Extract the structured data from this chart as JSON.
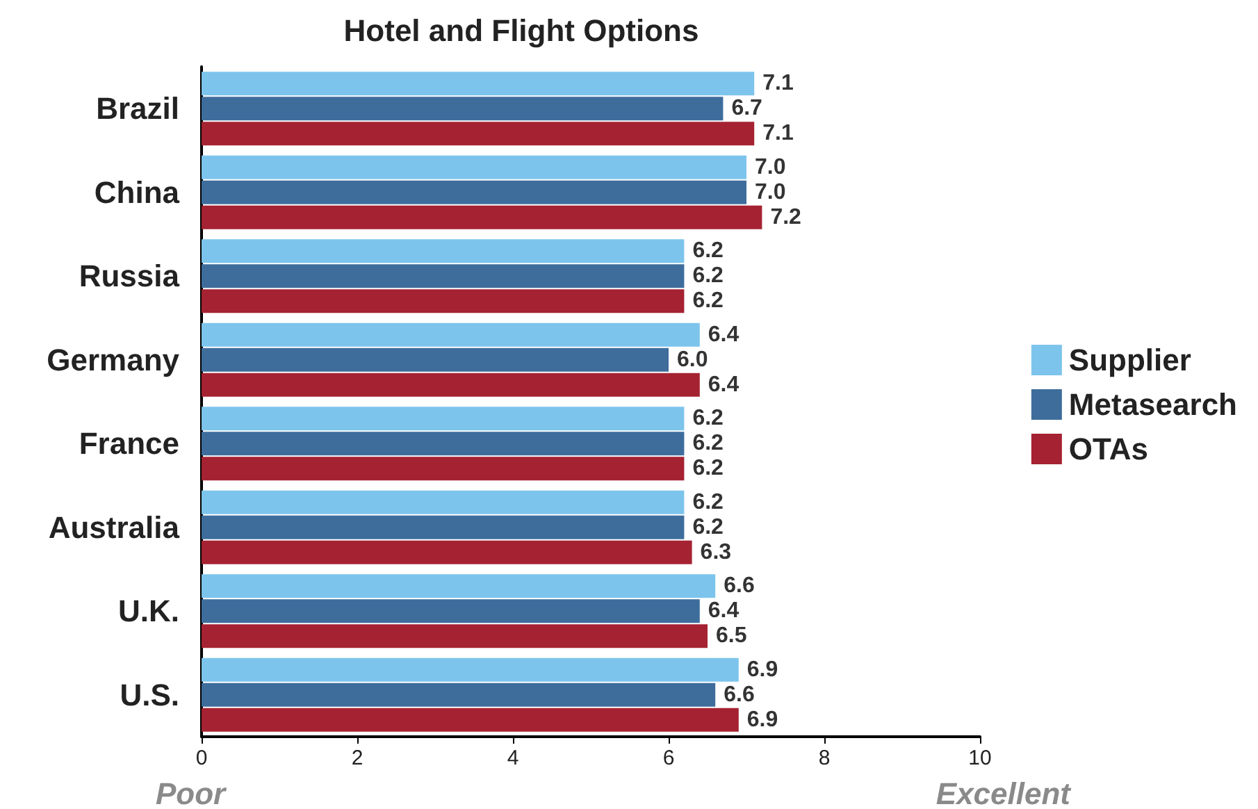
{
  "chart_data": {
    "type": "bar",
    "orientation": "horizontal",
    "title": "Hotel and Flight Options",
    "categories": [
      "Brazil",
      "China",
      "Russia",
      "Germany",
      "France",
      "Australia",
      "U.K.",
      "U.S."
    ],
    "series": [
      {
        "name": "Supplier",
        "color": "#7dc4ec",
        "values": [
          7.1,
          7.0,
          6.2,
          6.4,
          6.2,
          6.2,
          6.6,
          6.9
        ],
        "value_labels": [
          "7.1",
          "7.0",
          "6.2",
          "6.4",
          "6.2",
          "6.2",
          "6.6",
          "6.9"
        ]
      },
      {
        "name": "Metasearch",
        "color": "#3e6d9c",
        "values": [
          6.7,
          7.0,
          6.2,
          6.0,
          6.2,
          6.2,
          6.4,
          6.6
        ],
        "value_labels": [
          "6.7",
          "7.0",
          "6.2",
          "6.0",
          "6.2",
          "6.2",
          "6.4",
          "6.6"
        ]
      },
      {
        "name": "OTAs",
        "color": "#a52232",
        "values": [
          7.1,
          7.2,
          6.2,
          6.4,
          6.2,
          6.3,
          6.5,
          6.9
        ],
        "value_labels": [
          "7.1",
          "7.2",
          "6.2",
          "6.4",
          "6.2",
          "6.3",
          "6.5",
          "6.9"
        ]
      }
    ],
    "xlim": [
      0,
      10
    ],
    "xticks": [
      0,
      2,
      4,
      6,
      8,
      10
    ],
    "grid": false,
    "legend": "right",
    "annotations": [
      "Poor",
      "Excellent"
    ]
  }
}
